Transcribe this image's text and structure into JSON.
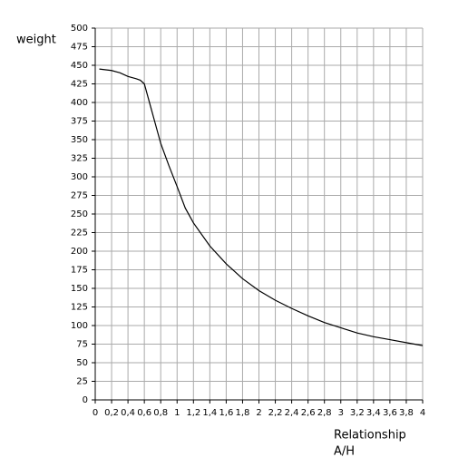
{
  "chart_data": {
    "type": "line",
    "y_label": "weight",
    "x_label": [
      "Relationship",
      "A/H"
    ],
    "x": [
      0.05,
      0.2,
      0.3,
      0.4,
      0.5,
      0.55,
      0.6,
      0.7,
      0.8,
      0.9,
      1.0,
      1.1,
      1.2,
      1.4,
      1.6,
      1.8,
      2.0,
      2.2,
      2.4,
      2.6,
      2.8,
      3.0,
      3.2,
      3.4,
      3.6,
      3.8,
      4.0
    ],
    "series": [
      {
        "color": "#000000",
        "values": [
          445,
          443,
          440,
          435,
          432,
          430,
          425,
          385,
          345,
          315,
          287,
          258,
          238,
          207,
          183,
          163,
          147,
          134,
          123,
          113,
          104,
          97,
          90,
          85,
          81,
          77,
          73
        ]
      }
    ],
    "xlim": [
      0,
      4
    ],
    "ylim": [
      0,
      500
    ],
    "xticks": [
      0,
      {
        "value": 0.2,
        "label": "0,2"
      },
      {
        "value": 0.4,
        "label": "0,4"
      },
      {
        "value": 0.6,
        "label": "0,6"
      },
      {
        "value": 0.8,
        "label": "0,8"
      },
      1,
      {
        "value": 1.2,
        "label": "1,2"
      },
      {
        "value": 1.4,
        "label": "1,4"
      },
      {
        "value": 1.6,
        "label": "1,6"
      },
      {
        "value": 1.8,
        "label": "1,8"
      },
      2,
      {
        "value": 2.2,
        "label": "2,2"
      },
      {
        "value": 2.4,
        "label": "2,4"
      },
      {
        "value": 2.6,
        "label": "2,6"
      },
      {
        "value": 2.8,
        "label": "2,8"
      },
      3,
      {
        "value": 3.2,
        "label": "3,2"
      },
      {
        "value": 3.4,
        "label": "3,4"
      },
      {
        "value": 3.6,
        "label": "3,6"
      },
      {
        "value": 3.8,
        "label": "3,8"
      },
      4
    ],
    "yticks": [
      0,
      25,
      50,
      75,
      100,
      125,
      150,
      175,
      200,
      225,
      250,
      275,
      300,
      325,
      350,
      375,
      400,
      425,
      450,
      475,
      500
    ],
    "grid": true
  }
}
